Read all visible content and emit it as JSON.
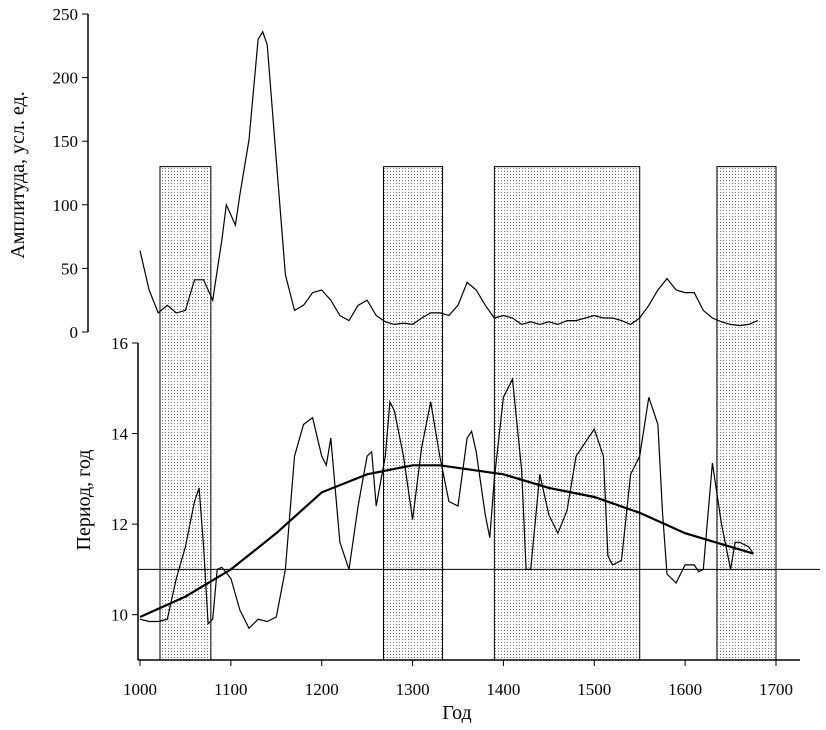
{
  "chart_data": [
    {
      "type": "line",
      "ylabel": "Амплитуда, усл. ед.",
      "xlim": [
        1000,
        1700
      ],
      "ylim": [
        0,
        250
      ],
      "yticks": [
        0,
        50,
        100,
        150,
        200,
        250
      ],
      "shaded_top": 130,
      "series": [
        {
          "color": "#000000",
          "x": [
            1000,
            1010,
            1020,
            1030,
            1040,
            1050,
            1060,
            1070,
            1080,
            1090,
            1095,
            1100,
            1105,
            1110,
            1120,
            1130,
            1135,
            1140,
            1150,
            1160,
            1170,
            1180,
            1190,
            1200,
            1210,
            1220,
            1230,
            1240,
            1250,
            1260,
            1270,
            1280,
            1290,
            1300,
            1310,
            1320,
            1330,
            1340,
            1350,
            1360,
            1370,
            1380,
            1390,
            1400,
            1410,
            1420,
            1430,
            1440,
            1450,
            1460,
            1470,
            1480,
            1490,
            1500,
            1510,
            1520,
            1530,
            1540,
            1550,
            1560,
            1570,
            1580,
            1590,
            1600,
            1610,
            1620,
            1630,
            1640,
            1650,
            1660,
            1670,
            1680
          ],
          "values": [
            64,
            33,
            15,
            21,
            15,
            17,
            41,
            41,
            25,
            72,
            100,
            92,
            84,
            108,
            151,
            230,
            236,
            226,
            135,
            45,
            17,
            21,
            31,
            33,
            25,
            13,
            9,
            21,
            25,
            13,
            8,
            6,
            7,
            6,
            11,
            15,
            15,
            13,
            21,
            39,
            33,
            21,
            11,
            13,
            11,
            6,
            8,
            6,
            8,
            6,
            9,
            9,
            11,
            13,
            11,
            11,
            9,
            6,
            11,
            21,
            33,
            42,
            33,
            31,
            31,
            17,
            11,
            8,
            6,
            5,
            6,
            9
          ]
        }
      ]
    },
    {
      "type": "line",
      "xlabel": "Год",
      "ylabel": "Период, год",
      "xlim": [
        1000,
        1700
      ],
      "xticks": [
        1000,
        1100,
        1200,
        1300,
        1400,
        1500,
        1600,
        1700
      ],
      "ylim": [
        9,
        16
      ],
      "yticks": [
        10,
        12,
        14,
        16
      ],
      "reference_line": 11,
      "shaded_periods": [
        [
          1022,
          1078
        ],
        [
          1268,
          1333
        ],
        [
          1390,
          1550
        ],
        [
          1635,
          1700
        ]
      ],
      "series": [
        {
          "color": "#000000",
          "x": [
            1000,
            1010,
            1020,
            1030,
            1040,
            1050,
            1060,
            1065,
            1070,
            1075,
            1080,
            1085,
            1090,
            1100,
            1110,
            1120,
            1130,
            1140,
            1150,
            1160,
            1170,
            1180,
            1190,
            1200,
            1205,
            1210,
            1220,
            1230,
            1240,
            1250,
            1255,
            1260,
            1270,
            1275,
            1280,
            1290,
            1300,
            1310,
            1320,
            1330,
            1340,
            1350,
            1360,
            1365,
            1370,
            1380,
            1385,
            1390,
            1400,
            1410,
            1420,
            1425,
            1430,
            1440,
            1450,
            1460,
            1470,
            1480,
            1490,
            1500,
            1510,
            1515,
            1520,
            1530,
            1540,
            1550,
            1560,
            1570,
            1575,
            1580,
            1590,
            1600,
            1610,
            1615,
            1620,
            1630,
            1640,
            1650,
            1655,
            1660,
            1670,
            1675
          ],
          "values": [
            9.9,
            9.85,
            9.85,
            9.9,
            10.8,
            11.5,
            12.5,
            12.8,
            11.5,
            9.8,
            9.9,
            11.0,
            11.05,
            10.8,
            10.1,
            9.7,
            9.9,
            9.85,
            9.95,
            11.0,
            13.5,
            14.2,
            14.35,
            13.5,
            13.3,
            13.9,
            11.6,
            11.0,
            12.4,
            13.5,
            13.6,
            12.4,
            13.5,
            14.7,
            14.5,
            13.5,
            12.1,
            13.7,
            14.7,
            13.5,
            12.5,
            12.4,
            13.9,
            14.05,
            13.6,
            12.2,
            11.7,
            13.0,
            14.8,
            15.2,
            13.2,
            11.0,
            11.0,
            13.1,
            12.2,
            11.8,
            12.3,
            13.5,
            13.8,
            14.1,
            13.5,
            11.3,
            11.1,
            11.2,
            13.1,
            13.5,
            14.8,
            14.2,
            12.3,
            10.9,
            10.7,
            11.1,
            11.1,
            10.95,
            11.0,
            13.35,
            12.0,
            11.0,
            11.6,
            11.6,
            11.5,
            11.35
          ]
        },
        {
          "color": "#000000",
          "x": [
            1000,
            1050,
            1100,
            1150,
            1200,
            1250,
            1300,
            1330,
            1400,
            1450,
            1500,
            1550,
            1600,
            1650,
            1675
          ],
          "values": [
            9.95,
            10.4,
            11.0,
            11.8,
            12.7,
            13.1,
            13.3,
            13.3,
            13.1,
            12.8,
            12.6,
            12.25,
            11.8,
            11.5,
            11.35
          ]
        }
      ]
    }
  ]
}
